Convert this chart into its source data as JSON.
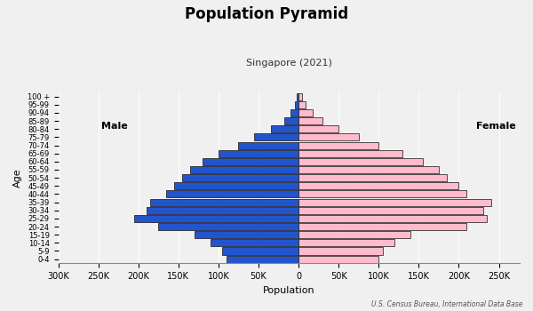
{
  "title": "Population Pyramid",
  "subtitle": "Singapore (2021)",
  "xlabel": "Population",
  "ylabel": "Age",
  "source": "U.S. Census Bureau, International Data Base",
  "age_groups": [
    "0-4",
    "5-9",
    "10-14",
    "15-19",
    "20-24",
    "25-29",
    "30-34",
    "35-39",
    "40-44",
    "45-49",
    "50-54",
    "55-59",
    "60-64",
    "65-69",
    "70-74",
    "75-79",
    "80-84",
    "85-89",
    "90-94",
    "95-99",
    "100 +"
  ],
  "male": [
    90000,
    95000,
    110000,
    130000,
    175000,
    205000,
    190000,
    185000,
    165000,
    155000,
    145000,
    135000,
    120000,
    100000,
    75000,
    55000,
    35000,
    18000,
    10000,
    5000,
    2000
  ],
  "female": [
    100000,
    105000,
    120000,
    140000,
    210000,
    235000,
    230000,
    240000,
    210000,
    200000,
    185000,
    175000,
    155000,
    130000,
    100000,
    75000,
    50000,
    30000,
    18000,
    9000,
    4000
  ],
  "male_color": "#2255CC",
  "female_color": "#FFBBCC",
  "bar_edge_color": "#111111",
  "bg_color": "#f0f0f0",
  "xlim": 300000,
  "xtick_vals": [
    -300000,
    -250000,
    -200000,
    -150000,
    -100000,
    -50000,
    0,
    50000,
    100000,
    150000,
    200000,
    250000
  ],
  "xtick_labels": [
    "300K",
    "250K",
    "200K",
    "150K",
    "100K",
    "50K",
    "0",
    "50K",
    "100K",
    "150K",
    "200K",
    "250K"
  ]
}
